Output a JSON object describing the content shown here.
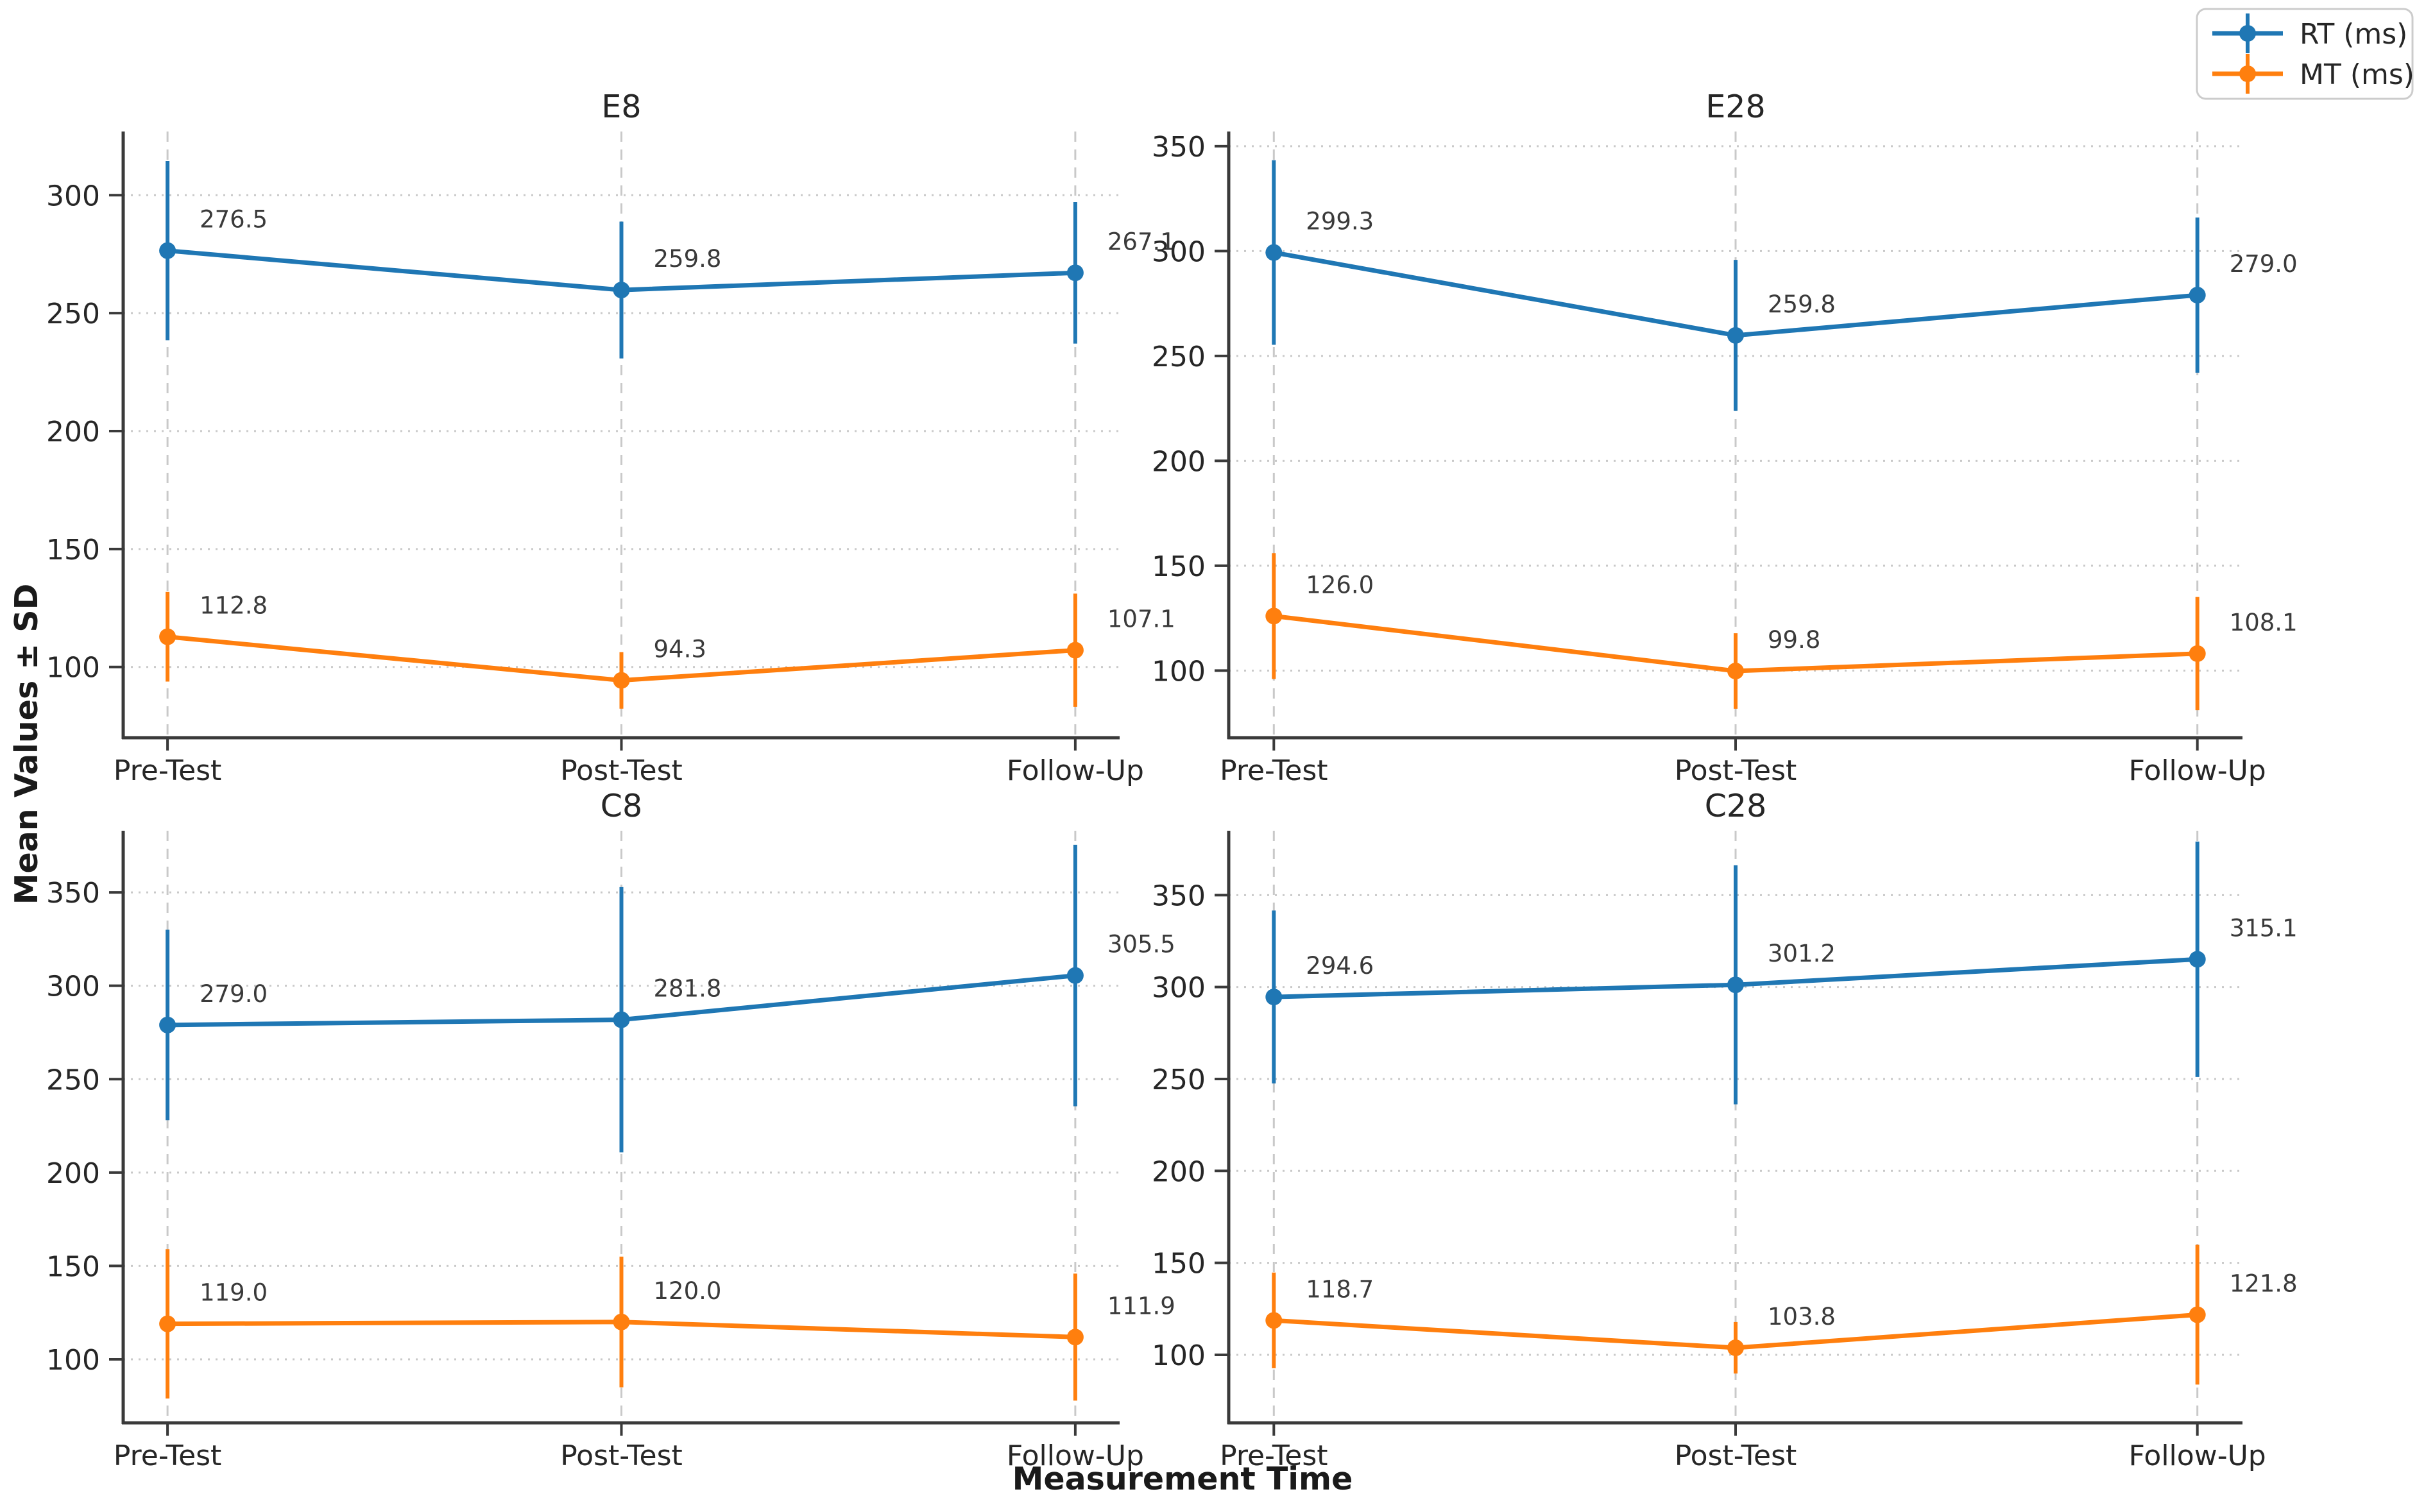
{
  "figure": {
    "xlabel": "Measurement Time",
    "ylabel": "Mean Values ± SD",
    "background": "#ffffff"
  },
  "legend": {
    "position": "top-right",
    "entries": [
      {
        "label": "RT (ms)",
        "color": "#1f77b4"
      },
      {
        "label": "MT (ms)",
        "color": "#ff7f0e"
      }
    ]
  },
  "styles": {
    "grid_color": "#c9c9c9",
    "spine_color": "#3a3a3a",
    "tick_color": "#3a3a3a",
    "label_color": "#3a3a3a"
  },
  "chart_data": [
    {
      "type": "line",
      "title": "E8",
      "categories": [
        "Pre-Test",
        "Post-Test",
        "Follow-Up"
      ],
      "ylim": [
        70,
        327
      ],
      "yticks": [
        100,
        150,
        200,
        250,
        300
      ],
      "grid": true,
      "series": [
        {
          "name": "RT (ms)",
          "color": "#1f77b4",
          "values": [
            276.5,
            259.8,
            267.1
          ],
          "sd": [
            38,
            29,
            30
          ]
        },
        {
          "name": "MT (ms)",
          "color": "#ff7f0e",
          "values": [
            112.8,
            94.3,
            107.1
          ],
          "sd": [
            19,
            12,
            24
          ]
        }
      ]
    },
    {
      "type": "line",
      "title": "E28",
      "categories": [
        "Pre-Test",
        "Post-Test",
        "Follow-Up"
      ],
      "ylim": [
        68,
        357
      ],
      "yticks": [
        100,
        150,
        200,
        250,
        300,
        350
      ],
      "grid": true,
      "series": [
        {
          "name": "RT (ms)",
          "color": "#1f77b4",
          "values": [
            299.3,
            259.8,
            279.0
          ],
          "sd": [
            44,
            36,
            37
          ]
        },
        {
          "name": "MT (ms)",
          "color": "#ff7f0e",
          "values": [
            126.0,
            99.8,
            108.1
          ],
          "sd": [
            30,
            18,
            27
          ]
        }
      ]
    },
    {
      "type": "line",
      "title": "C8",
      "categories": [
        "Pre-Test",
        "Post-Test",
        "Follow-Up"
      ],
      "ylim": [
        66,
        383
      ],
      "yticks": [
        100,
        150,
        200,
        250,
        300,
        350
      ],
      "grid": true,
      "series": [
        {
          "name": "RT (ms)",
          "color": "#1f77b4",
          "values": [
            279.0,
            281.8,
            305.5
          ],
          "sd": [
            51,
            71,
            70
          ]
        },
        {
          "name": "MT (ms)",
          "color": "#ff7f0e",
          "values": [
            119.0,
            120.0,
            111.9
          ],
          "sd": [
            40,
            35,
            34
          ]
        }
      ]
    },
    {
      "type": "line",
      "title": "C28",
      "categories": [
        "Pre-Test",
        "Post-Test",
        "Follow-Up"
      ],
      "ylim": [
        63,
        385
      ],
      "yticks": [
        100,
        150,
        200,
        250,
        300,
        350
      ],
      "grid": true,
      "series": [
        {
          "name": "RT (ms)",
          "color": "#1f77b4",
          "values": [
            294.6,
            301.2,
            315.1
          ],
          "sd": [
            47,
            65,
            64
          ]
        },
        {
          "name": "MT (ms)",
          "color": "#ff7f0e",
          "values": [
            118.7,
            103.8,
            121.8
          ],
          "sd": [
            26,
            14,
            38
          ]
        }
      ]
    }
  ]
}
